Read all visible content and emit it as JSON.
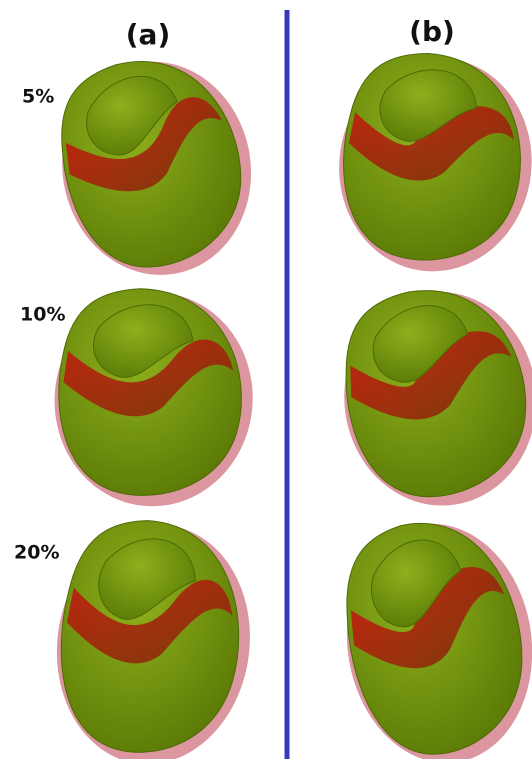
{
  "columns": [
    "(a)",
    "(b)"
  ],
  "rows": [
    "5%",
    "10%",
    "20%"
  ]
}
